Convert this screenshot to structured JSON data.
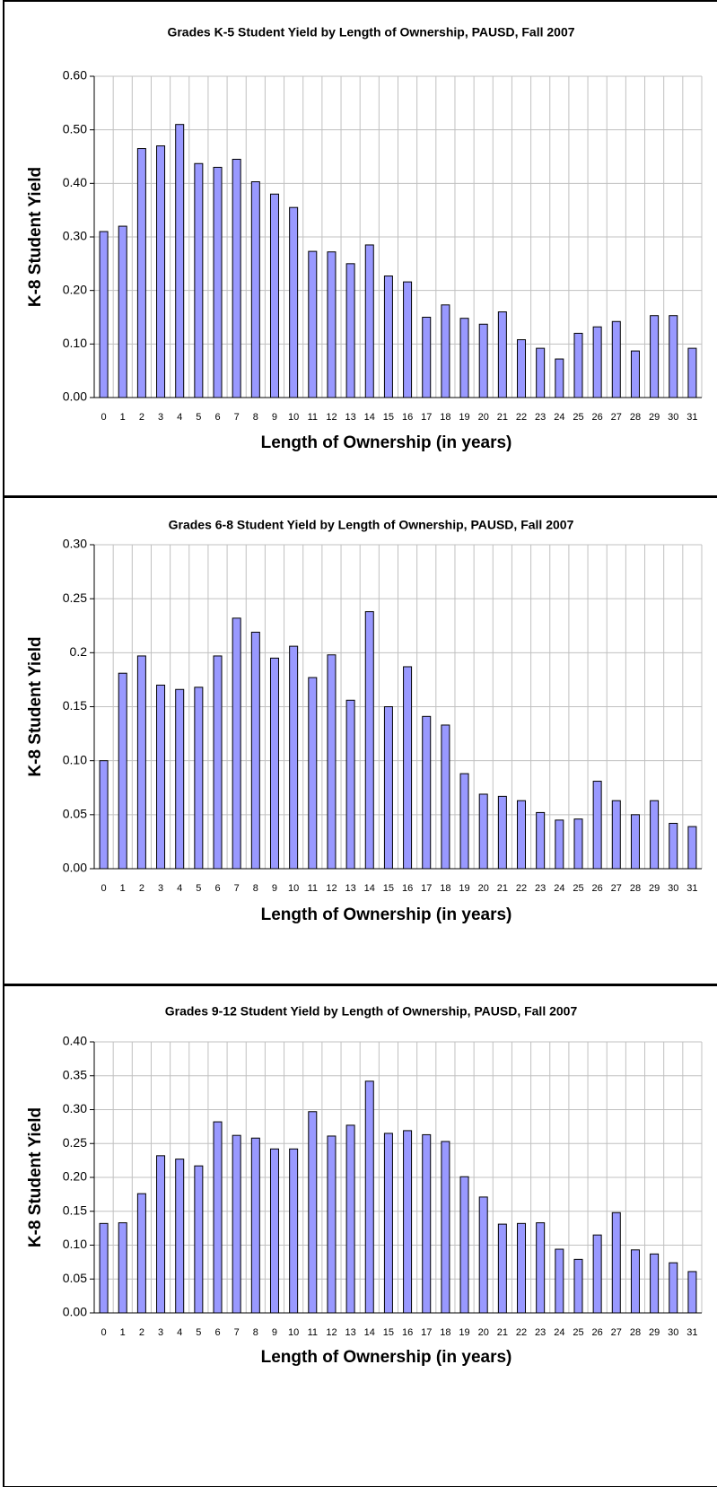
{
  "chart_data": [
    {
      "type": "bar",
      "title": "Grades K-5 Student Yield by Length of Ownership, PAUSD, Fall 2007",
      "x_label": "Length of Ownership (in years)",
      "y_label": "K-8 Student Yield",
      "color": "#9999ff",
      "grid": true,
      "categories": [
        "0",
        "1",
        "2",
        "3",
        "4",
        "5",
        "6",
        "7",
        "8",
        "9",
        "10",
        "11",
        "12",
        "13",
        "14",
        "15",
        "16",
        "17",
        "18",
        "19",
        "20",
        "21",
        "22",
        "23",
        "24",
        "25",
        "26",
        "27",
        "28",
        "29",
        "30",
        "31"
      ],
      "values": [
        0.31,
        0.32,
        0.465,
        0.47,
        0.51,
        0.437,
        0.43,
        0.445,
        0.403,
        0.38,
        0.355,
        0.273,
        0.272,
        0.25,
        0.285,
        0.227,
        0.216,
        0.15,
        0.173,
        0.148,
        0.137,
        0.16,
        0.108,
        0.092,
        0.072,
        0.12,
        0.132,
        0.142,
        0.087,
        0.153,
        0.153,
        0.092
      ],
      "ylim": [
        0,
        0.6
      ],
      "yticks": [
        {
          "value": 0,
          "label": "0.00"
        },
        {
          "value": 0.1,
          "label": "0.10"
        },
        {
          "value": 0.2,
          "label": "0.20"
        },
        {
          "value": 0.3,
          "label": "0.30"
        },
        {
          "value": 0.4,
          "label": "0.40"
        },
        {
          "value": 0.5,
          "label": "0.50"
        },
        {
          "value": 0.6,
          "label": "0.60"
        }
      ]
    },
    {
      "type": "bar",
      "title": "Grades 6-8 Student Yield by Length of Ownership, PAUSD, Fall 2007",
      "x_label": "Length of Ownership (in years)",
      "y_label": "K-8 Student Yield",
      "color": "#9999ff",
      "grid": true,
      "categories": [
        "0",
        "1",
        "2",
        "3",
        "4",
        "5",
        "6",
        "7",
        "8",
        "9",
        "10",
        "11",
        "12",
        "13",
        "14",
        "15",
        "16",
        "17",
        "18",
        "19",
        "20",
        "21",
        "22",
        "23",
        "24",
        "25",
        "26",
        "27",
        "28",
        "29",
        "30",
        "31"
      ],
      "values": [
        0.1,
        0.181,
        0.197,
        0.17,
        0.166,
        0.168,
        0.197,
        0.232,
        0.219,
        0.195,
        0.206,
        0.177,
        0.198,
        0.156,
        0.238,
        0.15,
        0.187,
        0.141,
        0.133,
        0.088,
        0.069,
        0.067,
        0.063,
        0.052,
        0.045,
        0.046,
        0.081,
        0.063,
        0.05,
        0.063,
        0.042,
        0.039
      ],
      "ylim": [
        0,
        0.3
      ],
      "yticks": [
        {
          "value": 0,
          "label": "0.00"
        },
        {
          "value": 0.05,
          "label": "0.05"
        },
        {
          "value": 0.1,
          "label": "0.10"
        },
        {
          "value": 0.15,
          "label": "0.15"
        },
        {
          "value": 0.2,
          "label": "0.2"
        },
        {
          "value": 0.25,
          "label": "0.25"
        },
        {
          "value": 0.3,
          "label": "0.30"
        }
      ]
    },
    {
      "type": "bar",
      "title": "Grades 9-12 Student Yield by Length of Ownership, PAUSD, Fall 2007",
      "x_label": "Length of Ownership (in years)",
      "y_label": "K-8 Student Yield",
      "color": "#9999ff",
      "grid": true,
      "categories": [
        "0",
        "1",
        "2",
        "3",
        "4",
        "5",
        "6",
        "7",
        "8",
        "9",
        "10",
        "11",
        "12",
        "13",
        "14",
        "15",
        "16",
        "17",
        "18",
        "19",
        "20",
        "21",
        "22",
        "23",
        "24",
        "25",
        "26",
        "27",
        "28",
        "29",
        "30",
        "31"
      ],
      "values": [
        0.132,
        0.133,
        0.176,
        0.232,
        0.227,
        0.217,
        0.282,
        0.262,
        0.258,
        0.242,
        0.242,
        0.297,
        0.261,
        0.277,
        0.342,
        0.265,
        0.269,
        0.263,
        0.253,
        0.201,
        0.171,
        0.131,
        0.132,
        0.133,
        0.094,
        0.079,
        0.115,
        0.148,
        0.093,
        0.087,
        0.074,
        0.061
      ],
      "ylim": [
        0,
        0.4
      ],
      "yticks": [
        {
          "value": 0,
          "label": "0.00"
        },
        {
          "value": 0.05,
          "label": "0.05"
        },
        {
          "value": 0.1,
          "label": "0.10"
        },
        {
          "value": 0.15,
          "label": "0.15"
        },
        {
          "value": 0.2,
          "label": "0.20"
        },
        {
          "value": 0.25,
          "label": "0.25"
        },
        {
          "value": 0.3,
          "label": "0.30"
        },
        {
          "value": 0.35,
          "label": "0.35"
        },
        {
          "value": 0.4,
          "label": "0.40"
        }
      ]
    }
  ]
}
